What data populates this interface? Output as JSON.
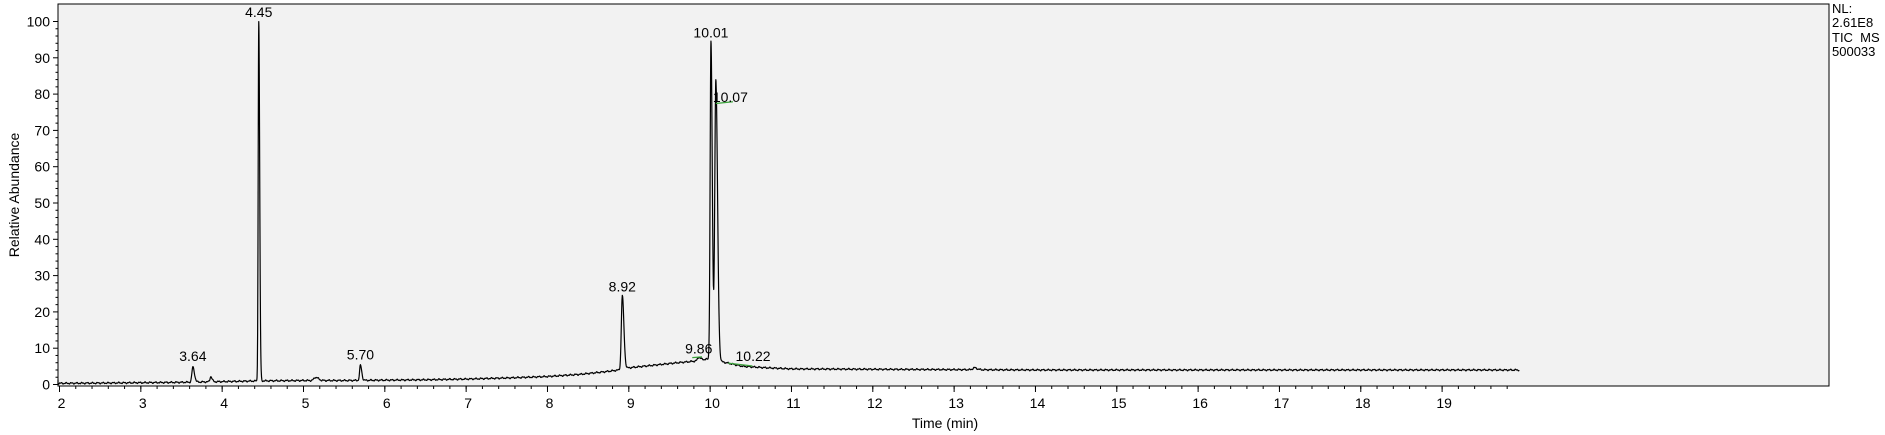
{
  "chart_data": {
    "type": "line",
    "xlabel": "Time (min)",
    "ylabel": "Relative Abundance",
    "xlim": [
      1.8,
      19.95
    ],
    "ylim": [
      0,
      100
    ],
    "x_ticks": [
      2,
      3,
      4,
      5,
      6,
      7,
      8,
      9,
      10,
      11,
      12,
      13,
      14,
      15,
      16,
      17,
      18,
      19
    ],
    "y_ticks": [
      0,
      10,
      20,
      30,
      40,
      50,
      60,
      70,
      80,
      90,
      100
    ],
    "info_lines": [
      "NL:",
      "2.61E8",
      "TIC  MS",
      "500033"
    ],
    "line_color": "#000000",
    "integration_color": "#3aa33a",
    "baseline": [
      [
        1.8,
        1.5
      ],
      [
        1.84,
        0.3
      ],
      [
        2.5,
        0.4
      ],
      [
        3.0,
        0.5
      ],
      [
        3.5,
        0.6
      ],
      [
        4.0,
        0.8
      ],
      [
        4.5,
        1.0
      ],
      [
        5.0,
        1.1
      ],
      [
        5.5,
        1.1
      ],
      [
        6.0,
        1.2
      ],
      [
        6.5,
        1.3
      ],
      [
        7.0,
        1.5
      ],
      [
        7.5,
        1.8
      ],
      [
        8.0,
        2.2
      ],
      [
        8.4,
        2.8
      ],
      [
        8.7,
        3.5
      ],
      [
        8.88,
        4.0
      ],
      [
        9.0,
        4.6
      ],
      [
        9.3,
        5.3
      ],
      [
        9.6,
        6.0
      ],
      [
        9.8,
        6.4
      ],
      [
        9.95,
        7.0
      ],
      [
        10.2,
        6.0
      ],
      [
        10.4,
        5.0
      ],
      [
        10.7,
        4.6
      ],
      [
        11.0,
        4.3
      ],
      [
        12.0,
        4.2
      ],
      [
        13.0,
        4.1
      ],
      [
        14.0,
        4.0
      ],
      [
        15.0,
        4.0
      ],
      [
        16.0,
        4.0
      ],
      [
        17.0,
        4.0
      ],
      [
        18.0,
        4.0
      ],
      [
        19.0,
        4.0
      ],
      [
        19.95,
        4.0
      ]
    ],
    "peaks": [
      {
        "x": 3.64,
        "height": 4.8,
        "width": 0.012
      },
      {
        "x": 3.86,
        "height": 2.2,
        "width": 0.01
      },
      {
        "x": 4.45,
        "height": 100,
        "width": 0.007
      },
      {
        "x": 5.15,
        "height": 2.0,
        "width": 0.02
      },
      {
        "x": 5.7,
        "height": 5.3,
        "width": 0.01
      },
      {
        "x": 8.92,
        "height": 24.5,
        "width": 0.012
      },
      {
        "x": 9.86,
        "height": 7.5,
        "width": 0.014
      },
      {
        "x": 10.01,
        "height": 94.5,
        "width": 0.01
      },
      {
        "x": 10.07,
        "height": 84,
        "width": 0.013
      },
      {
        "x": 10.22,
        "height": 5.8,
        "width": 0.02
      },
      {
        "x": 13.25,
        "height": 4.6,
        "width": 0.02
      }
    ],
    "peak_labels": [
      {
        "x": 3.64,
        "y": 6.5,
        "text": "3.64"
      },
      {
        "x": 4.45,
        "y": 101.3,
        "text": "4.45"
      },
      {
        "x": 5.7,
        "y": 6.9,
        "text": "5.70"
      },
      {
        "x": 8.92,
        "y": 25.6,
        "text": "8.92"
      },
      {
        "x": 9.86,
        "y": 8.6,
        "text": "9.86"
      },
      {
        "x": 10.01,
        "y": 95.6,
        "text": "10.01"
      },
      {
        "x": 10.07,
        "y": 77.8,
        "text": "10.07"
      },
      {
        "x": 10.22,
        "y": 6.5,
        "text": "10.22"
      }
    ],
    "integration_marks": [
      {
        "x1": 9.78,
        "y1": 7.4,
        "x2": 9.9,
        "y2": 7.6
      },
      {
        "x1": 10.07,
        "y1": 77.4,
        "x2": 10.28,
        "y2": 77.9
      },
      {
        "x1": 10.22,
        "y1": 5.9,
        "x2": 10.52,
        "y2": 5.1
      }
    ]
  }
}
